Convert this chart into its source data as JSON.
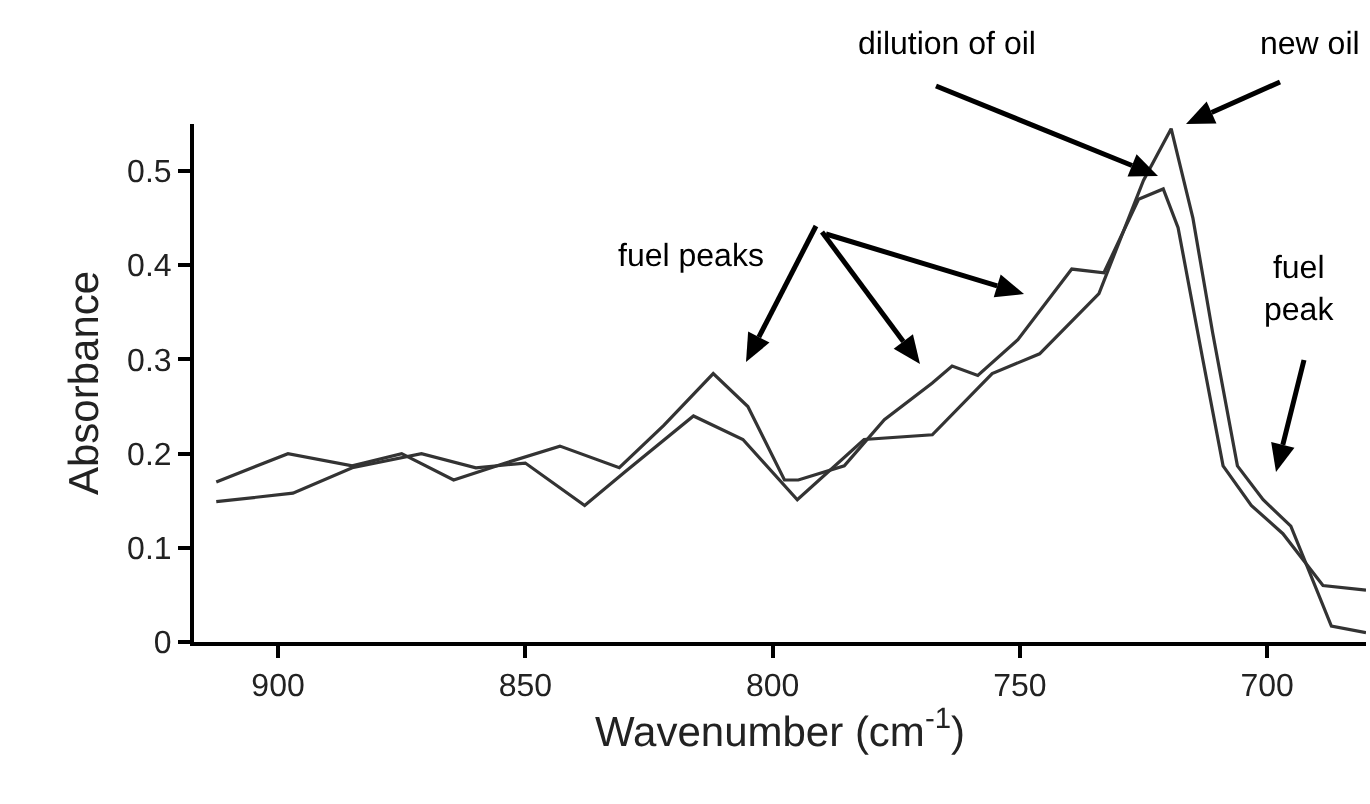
{
  "chart_data": {
    "type": "line",
    "xlabel": "Wavenumber (cm$^{-1}$)",
    "ylabel": "Absorbance",
    "xlim": [
      917,
      680
    ],
    "xticks": [
      900,
      850,
      800,
      750,
      700
    ],
    "ylim": [
      0,
      0.55
    ],
    "yticks": [
      0,
      0.1,
      0.2,
      0.3,
      0.4,
      0.5
    ],
    "series": [
      {
        "color": "#333333",
        "x": [
          912.5,
          898,
          885,
          875,
          864.5,
          854,
          843,
          831,
          822,
          812,
          805,
          797.6,
          794.8,
          785.5,
          777.4,
          767.7,
          763.7,
          758.5,
          750.4,
          739.5,
          733,
          726,
          721,
          718,
          713,
          708.9,
          703.2,
          696.8,
          688.7,
          680
        ],
        "values": [
          0.17,
          0.2,
          0.187,
          0.2,
          0.172,
          0.19,
          0.208,
          0.185,
          0.23,
          0.285,
          0.25,
          0.172,
          0.172,
          0.187,
          0.236,
          0.275,
          0.293,
          0.283,
          0.321,
          0.396,
          0.392,
          0.47,
          0.481,
          0.44,
          0.3,
          0.187,
          0.145,
          0.115,
          0.06,
          0.055
        ]
      },
      {
        "color": "#333333",
        "x": [
          912.5,
          897,
          885,
          871,
          860,
          850,
          838,
          830,
          816,
          806,
          795,
          781.5,
          767.7,
          755.6,
          746,
          734,
          725,
          719.4,
          715,
          711,
          706,
          700.8,
          695.2,
          687,
          680
        ],
        "values": [
          0.149,
          0.158,
          0.185,
          0.2,
          0.185,
          0.19,
          0.145,
          0.18,
          0.24,
          0.215,
          0.151,
          0.215,
          0.22,
          0.285,
          0.306,
          0.37,
          0.49,
          0.545,
          0.45,
          0.328,
          0.187,
          0.151,
          0.123,
          0.017,
          0.01
        ]
      }
    ],
    "annotations": [
      "fuel peaks",
      "dilution of oil",
      "new oil",
      "fuel\npeak"
    ]
  }
}
